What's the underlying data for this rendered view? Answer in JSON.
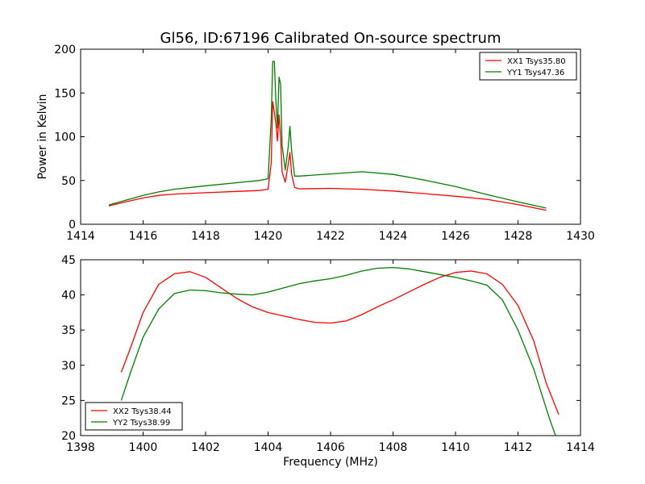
{
  "title": "Gl56, ID:67196 Calibrated On-source spectrum",
  "chart_data": [
    {
      "type": "line",
      "ylabel": "Power in Kelvin",
      "xlim": [
        1414,
        1430
      ],
      "ylim": [
        0,
        200
      ],
      "xticks": [
        "1414",
        "1416",
        "1418",
        "1420",
        "1422",
        "1424",
        "1426",
        "1428",
        "1430"
      ],
      "yticks": [
        "0",
        "50",
        "100",
        "150",
        "200"
      ],
      "legend_position": "top-right",
      "series": [
        {
          "name": "XX1 Tsys35.80",
          "color": "#ff0000",
          "points": [
            [
              1414.9,
              21
            ],
            [
              1415.5,
              26
            ],
            [
              1416.0,
              30
            ],
            [
              1416.5,
              33
            ],
            [
              1417.0,
              34.5
            ],
            [
              1418.0,
              36
            ],
            [
              1419.0,
              37.5
            ],
            [
              1419.7,
              38.5
            ],
            [
              1420.0,
              40
            ],
            [
              1420.1,
              70
            ],
            [
              1420.15,
              140
            ],
            [
              1420.2,
              128
            ],
            [
              1420.25,
              115
            ],
            [
              1420.3,
              95
            ],
            [
              1420.35,
              125
            ],
            [
              1420.4,
              100
            ],
            [
              1420.45,
              60
            ],
            [
              1420.55,
              48
            ],
            [
              1420.65,
              70
            ],
            [
              1420.7,
              82
            ],
            [
              1420.75,
              58
            ],
            [
              1420.85,
              42
            ],
            [
              1421.0,
              40.5
            ],
            [
              1422.0,
              41
            ],
            [
              1423.0,
              40
            ],
            [
              1424.0,
              38
            ],
            [
              1425.0,
              35
            ],
            [
              1426.0,
              32
            ],
            [
              1427.0,
              28.5
            ],
            [
              1428.0,
              22.5
            ],
            [
              1428.9,
              16
            ]
          ]
        },
        {
          "name": "YY1 Tsys47.36",
          "color": "#008000",
          "points": [
            [
              1414.9,
              22
            ],
            [
              1415.5,
              28
            ],
            [
              1416.0,
              33
            ],
            [
              1416.5,
              37
            ],
            [
              1417.0,
              40
            ],
            [
              1418.0,
              44
            ],
            [
              1419.0,
              47.5
            ],
            [
              1419.7,
              50
            ],
            [
              1420.0,
              52
            ],
            [
              1420.1,
              120
            ],
            [
              1420.15,
              186
            ],
            [
              1420.2,
              186
            ],
            [
              1420.25,
              140
            ],
            [
              1420.3,
              110
            ],
            [
              1420.35,
              168
            ],
            [
              1420.4,
              160
            ],
            [
              1420.45,
              90
            ],
            [
              1420.55,
              62
            ],
            [
              1420.65,
              90
            ],
            [
              1420.7,
              112
            ],
            [
              1420.75,
              85
            ],
            [
              1420.85,
              55
            ],
            [
              1421.0,
              55
            ],
            [
              1422.0,
              57.5
            ],
            [
              1423.0,
              60
            ],
            [
              1424.0,
              57
            ],
            [
              1425.0,
              50.5
            ],
            [
              1426.0,
              43
            ],
            [
              1427.0,
              34
            ],
            [
              1428.0,
              25.5
            ],
            [
              1428.9,
              18.5
            ]
          ]
        }
      ]
    },
    {
      "type": "line",
      "xlabel": "Frequency (MHz)",
      "xlim": [
        1398,
        1414
      ],
      "ylim": [
        20,
        45
      ],
      "xticks": [
        "1398",
        "1400",
        "1402",
        "1404",
        "1406",
        "1408",
        "1410",
        "1412",
        "1414"
      ],
      "yticks": [
        "20",
        "25",
        "30",
        "35",
        "40",
        "45"
      ],
      "legend_position": "bottom-left",
      "series": [
        {
          "name": "XX2 Tsys38.44",
          "color": "#ff0000",
          "points": [
            [
              1399.3,
              29
            ],
            [
              1399.6,
              32.5
            ],
            [
              1400.0,
              37.5
            ],
            [
              1400.5,
              41.5
            ],
            [
              1401.0,
              43
            ],
            [
              1401.5,
              43.3
            ],
            [
              1402.0,
              42.5
            ],
            [
              1402.5,
              41
            ],
            [
              1403.0,
              39.5
            ],
            [
              1403.5,
              38.3
            ],
            [
              1404.0,
              37.5
            ],
            [
              1404.5,
              37
            ],
            [
              1405.0,
              36.5
            ],
            [
              1405.5,
              36.1
            ],
            [
              1406.0,
              36.0
            ],
            [
              1406.5,
              36.3
            ],
            [
              1407.0,
              37.2
            ],
            [
              1407.5,
              38.3
            ],
            [
              1408.0,
              39.3
            ],
            [
              1408.5,
              40.4
            ],
            [
              1409.0,
              41.5
            ],
            [
              1409.5,
              42.5
            ],
            [
              1410.0,
              43.2
            ],
            [
              1410.5,
              43.4
            ],
            [
              1411.0,
              43
            ],
            [
              1411.5,
              41.5
            ],
            [
              1412.0,
              38.5
            ],
            [
              1412.5,
              33.5
            ],
            [
              1412.9,
              27.5
            ],
            [
              1413.3,
              23
            ]
          ]
        },
        {
          "name": "YY2 Tsys38.99",
          "color": "#008000",
          "points": [
            [
              1399.3,
              25
            ],
            [
              1399.6,
              29
            ],
            [
              1400.0,
              34
            ],
            [
              1400.5,
              38
            ],
            [
              1401.0,
              40.2
            ],
            [
              1401.5,
              40.7
            ],
            [
              1402.0,
              40.6
            ],
            [
              1402.5,
              40.3
            ],
            [
              1403.0,
              40.1
            ],
            [
              1403.5,
              40.0
            ],
            [
              1404.0,
              40.4
            ],
            [
              1404.5,
              41
            ],
            [
              1405.0,
              41.6
            ],
            [
              1405.5,
              42
            ],
            [
              1406.0,
              42.3
            ],
            [
              1406.5,
              42.8
            ],
            [
              1407.0,
              43.4
            ],
            [
              1407.5,
              43.8
            ],
            [
              1408.0,
              43.9
            ],
            [
              1408.5,
              43.7
            ],
            [
              1409.0,
              43.3
            ],
            [
              1409.5,
              42.9
            ],
            [
              1410.0,
              42.5
            ],
            [
              1410.5,
              42.0
            ],
            [
              1411.0,
              41.4
            ],
            [
              1411.5,
              39.3
            ],
            [
              1412.0,
              35
            ],
            [
              1412.5,
              29.5
            ],
            [
              1413.0,
              22.5
            ],
            [
              1413.2,
              20
            ]
          ]
        }
      ]
    }
  ]
}
